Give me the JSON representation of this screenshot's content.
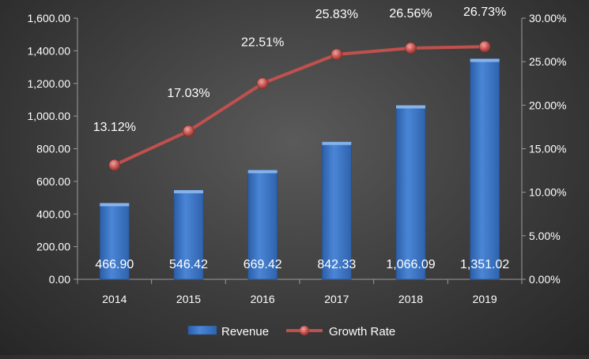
{
  "chart_data": {
    "type": "bar",
    "categories": [
      "2014",
      "2015",
      "2016",
      "2017",
      "2018",
      "2019"
    ],
    "series": [
      {
        "name": "Revenue",
        "type": "bar",
        "axis": "left",
        "values": [
          466.9,
          546.42,
          669.42,
          842.33,
          1066.09,
          1351.02
        ],
        "labels": [
          "466.90",
          "546.42",
          "669.42",
          "842.33",
          "1,066.09",
          "1,351.02"
        ],
        "color": "#3f79c9"
      },
      {
        "name": "Growth Rate",
        "type": "line",
        "axis": "right",
        "values": [
          13.12,
          17.03,
          22.51,
          25.83,
          26.56,
          26.73
        ],
        "labels": [
          "13.12%",
          "17.03%",
          "22.51%",
          "25.83%",
          "26.56%",
          "26.73%"
        ],
        "color": "#c0504d"
      }
    ],
    "left_axis": {
      "ylim": [
        0,
        1600
      ],
      "ticks": [
        "0.00",
        "200.00",
        "400.00",
        "600.00",
        "800.00",
        "1,000.00",
        "1,200.00",
        "1,400.00",
        "1,600.00"
      ]
    },
    "right_axis": {
      "ylim": [
        0,
        30
      ],
      "ticks": [
        "0.00%",
        "5.00%",
        "10.00%",
        "15.00%",
        "20.00%",
        "25.00%",
        "30.00%"
      ]
    },
    "grid": false,
    "legend_position": "bottom",
    "text_color": "#ffffff",
    "axis_color": "#9a9a9a"
  }
}
